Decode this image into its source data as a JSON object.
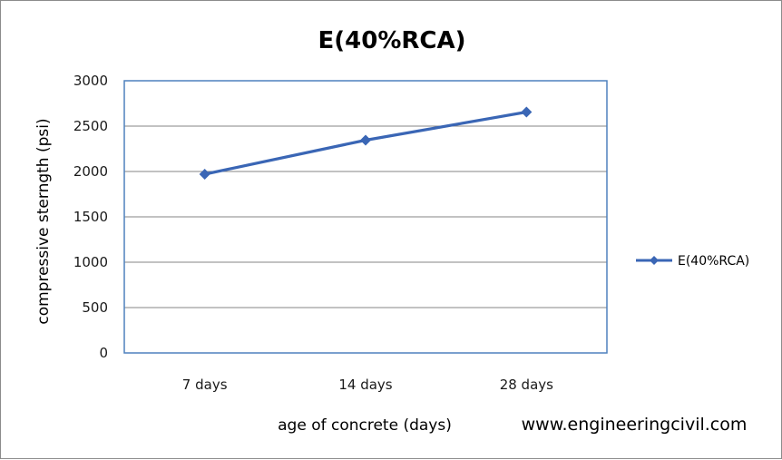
{
  "chart_data": {
    "type": "line",
    "title": "E(40%RCA)",
    "xlabel": "age of concrete (days)",
    "ylabel": "compressive sterngth (psi)",
    "categories": [
      "7 days",
      "14 days",
      "28 days"
    ],
    "series": [
      {
        "name": "E(40%RCA)",
        "values": [
          1970,
          2345,
          2655
        ],
        "color": "#3a66b5",
        "marker": "diamond"
      }
    ],
    "ylim": [
      0,
      3000
    ],
    "yticks": [
      0,
      500,
      1000,
      1500,
      2000,
      2500,
      3000
    ],
    "grid": true,
    "legend_position": "right"
  },
  "watermark": "www.engineeringcivil.com"
}
